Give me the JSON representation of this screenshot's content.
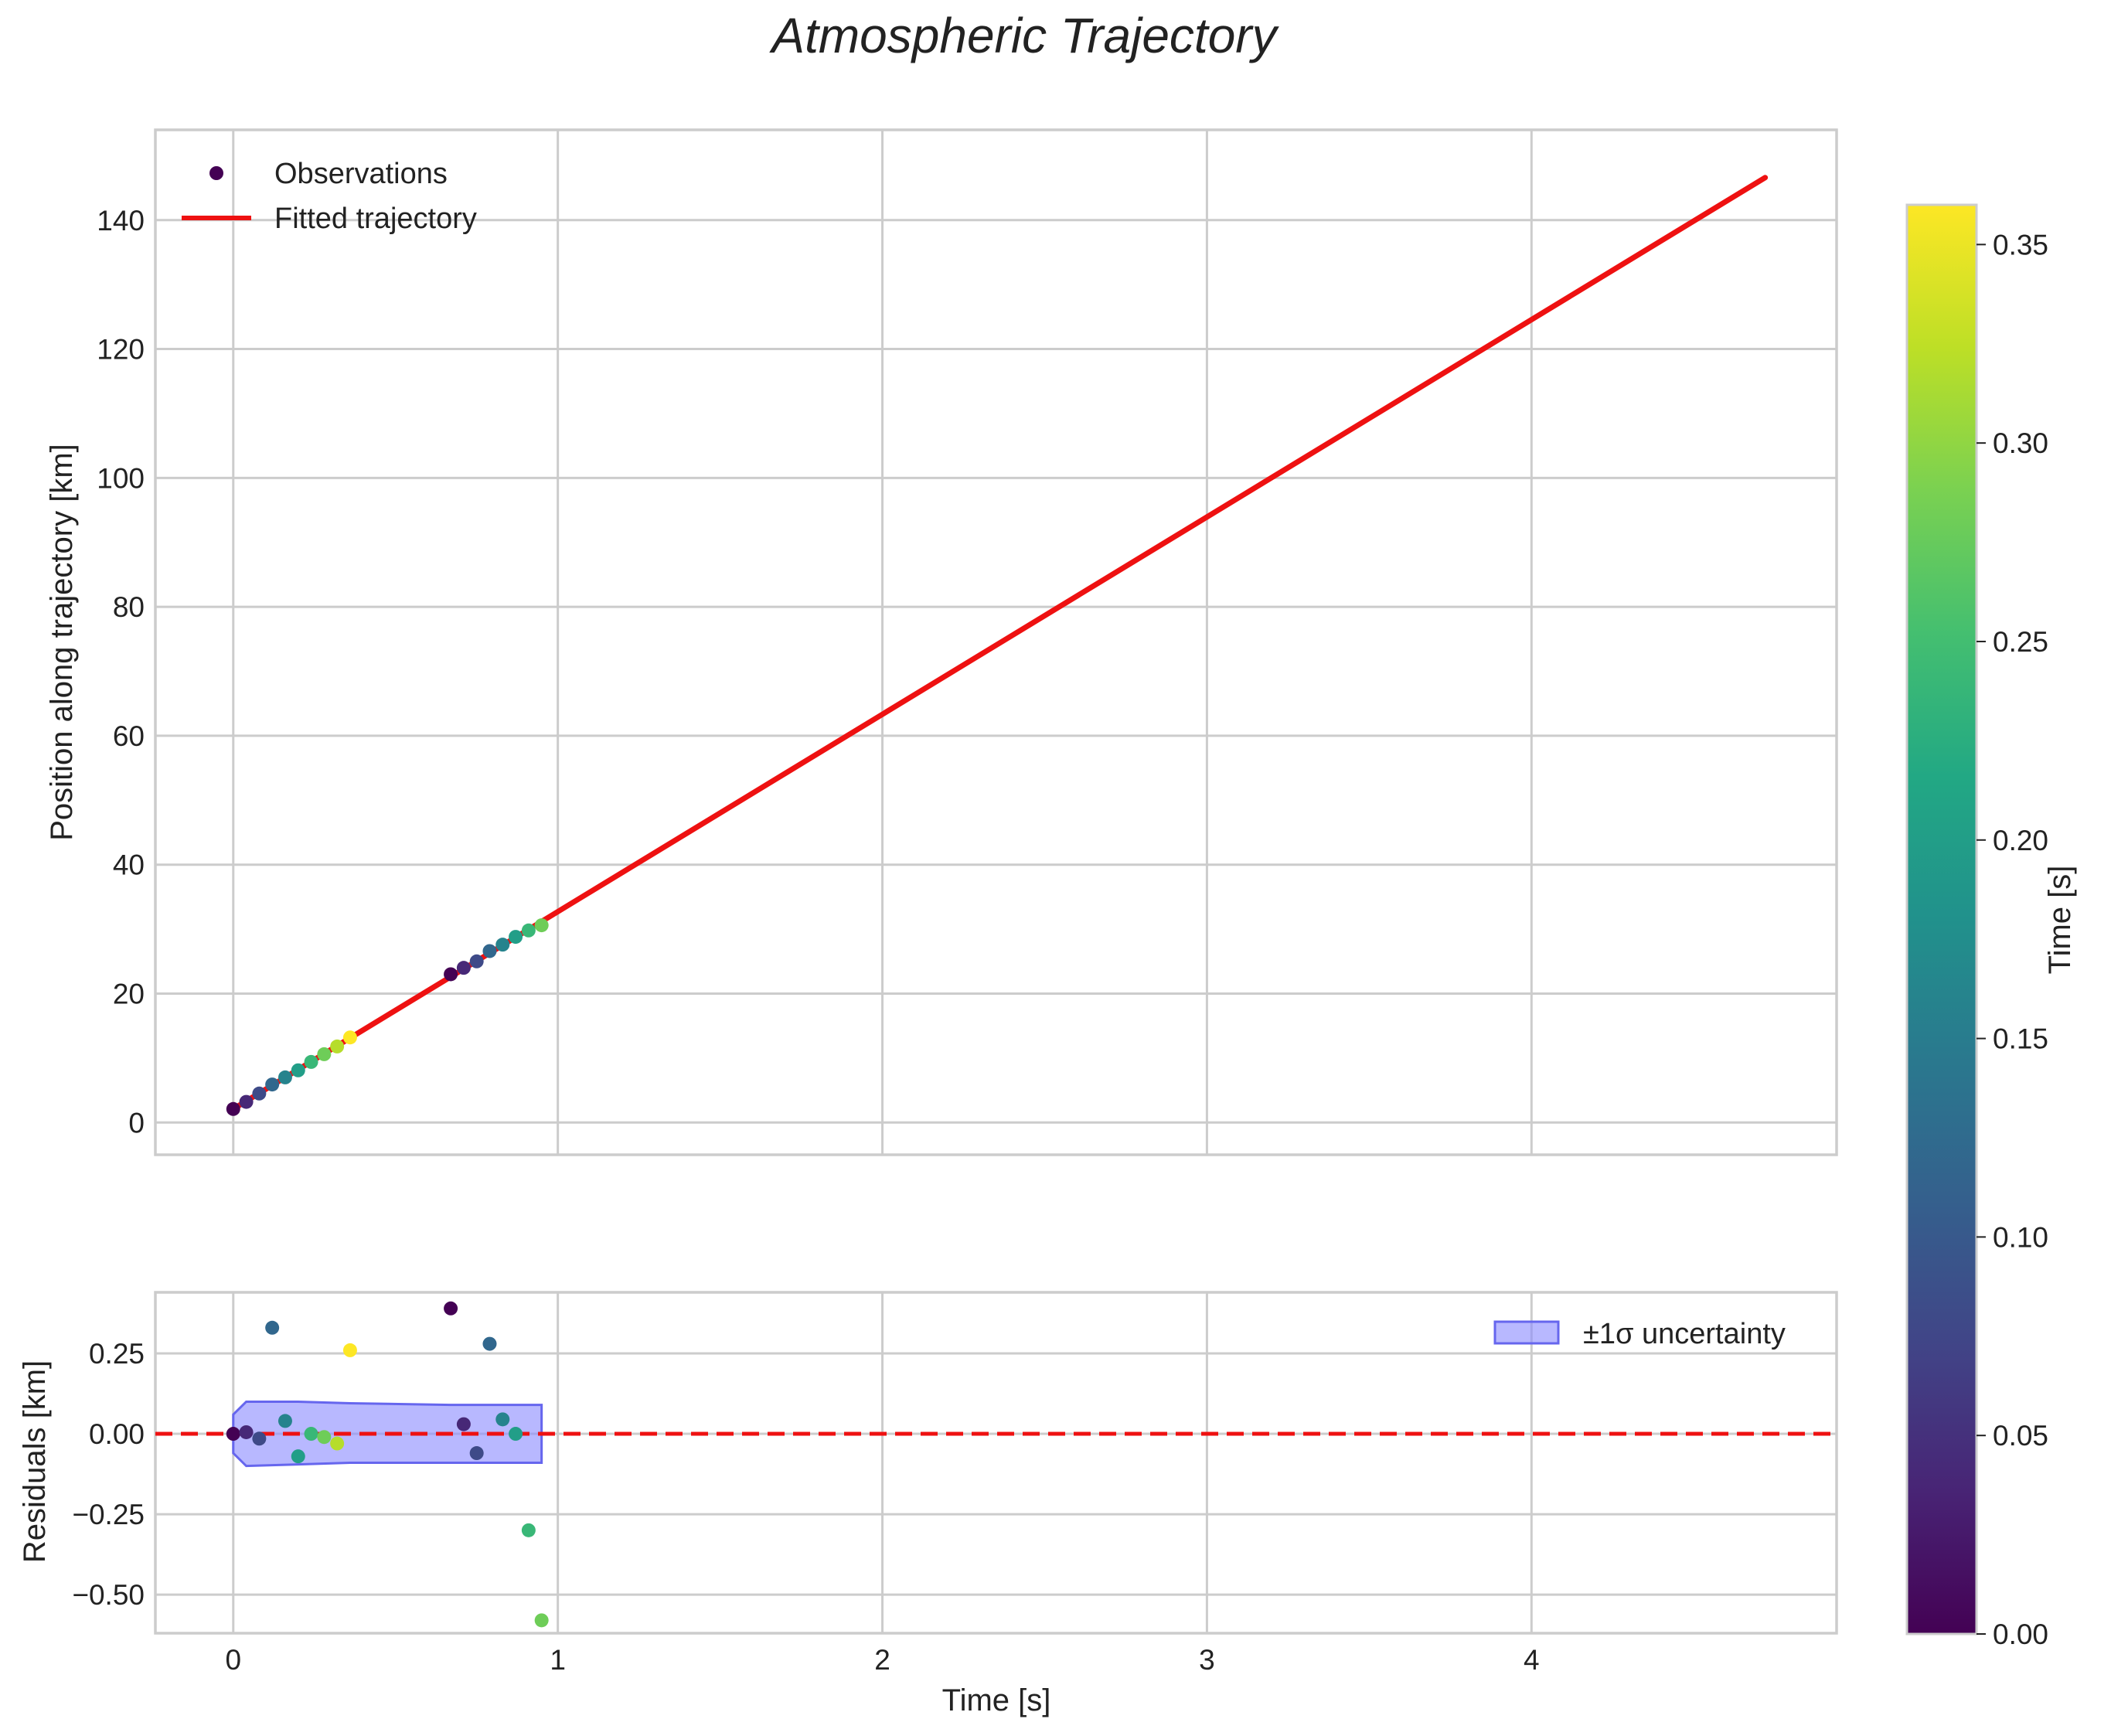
{
  "chart_data": [
    {
      "type": "line",
      "panel": "main",
      "title": "Atmospheric Trajectory",
      "xlabel": "",
      "ylabel": "Position along trajectory [km]",
      "xlim": [
        -0.24,
        4.94
      ],
      "ylim": [
        -5,
        154
      ],
      "x_ticks": [
        0,
        1,
        2,
        3,
        4
      ],
      "y_ticks": [
        0,
        20,
        40,
        60,
        80,
        100,
        120,
        140
      ],
      "grid": true,
      "legend": {
        "placement": "top-left",
        "entries": [
          "Observations",
          "Fitted trajectory"
        ]
      },
      "series": [
        {
          "name": "Observations",
          "kind": "scatter",
          "points": [
            {
              "x": 0.0,
              "y": 2.1,
              "t": 0.0
            },
            {
              "x": 0.04,
              "y": 3.2,
              "t": 0.04
            },
            {
              "x": 0.08,
              "y": 4.5,
              "t": 0.08
            },
            {
              "x": 0.12,
              "y": 5.9,
              "t": 0.12
            },
            {
              "x": 0.16,
              "y": 7.0,
              "t": 0.16
            },
            {
              "x": 0.2,
              "y": 8.1,
              "t": 0.2
            },
            {
              "x": 0.24,
              "y": 9.4,
              "t": 0.24
            },
            {
              "x": 0.28,
              "y": 10.6,
              "t": 0.28
            },
            {
              "x": 0.32,
              "y": 11.8,
              "t": 0.32
            },
            {
              "x": 0.36,
              "y": 13.2,
              "t": 0.36
            },
            {
              "x": 0.67,
              "y": 23.0,
              "t": 0.0
            },
            {
              "x": 0.71,
              "y": 24.0,
              "t": 0.04
            },
            {
              "x": 0.75,
              "y": 25.0,
              "t": 0.08
            },
            {
              "x": 0.79,
              "y": 26.6,
              "t": 0.12
            },
            {
              "x": 0.83,
              "y": 27.6,
              "t": 0.16
            },
            {
              "x": 0.87,
              "y": 28.8,
              "t": 0.2
            },
            {
              "x": 0.91,
              "y": 29.8,
              "t": 0.24
            },
            {
              "x": 0.95,
              "y": 30.6,
              "t": 0.28
            }
          ]
        },
        {
          "name": "Fitted trajectory",
          "kind": "line",
          "color": "#ee1111",
          "points": [
            {
              "x": 0.0,
              "y": 2.1
            },
            {
              "x": 4.72,
              "y": 146.6
            }
          ]
        }
      ]
    },
    {
      "type": "scatter",
      "panel": "residuals",
      "xlabel": "Time [s]",
      "ylabel": "Residuals [km]",
      "xlim": [
        -0.24,
        4.94
      ],
      "ylim": [
        -0.62,
        0.44
      ],
      "x_ticks": [
        0,
        1,
        2,
        3,
        4
      ],
      "x_tick_labels": [
        "0",
        "1",
        "2",
        "3",
        "4"
      ],
      "y_ticks": [
        0.25,
        0.0,
        -0.25,
        -0.5
      ],
      "y_tick_labels": [
        "0.25",
        "0.00",
        "−0.25",
        "−0.50"
      ],
      "grid": true,
      "zero_line": {
        "y": 0,
        "style": "dashed",
        "color": "#ee1111"
      },
      "legend": {
        "placement": "top-right",
        "entries": [
          "±1σ uncertainty"
        ]
      },
      "band": {
        "name": "±1σ uncertainty",
        "color": "#8888ff",
        "x": [
          0.0,
          0.04,
          0.2,
          0.36,
          0.67,
          0.95
        ],
        "upper": [
          0.06,
          0.1,
          0.1,
          0.095,
          0.09,
          0.09
        ],
        "lower": [
          -0.06,
          -0.1,
          -0.095,
          -0.09,
          -0.09,
          -0.09
        ]
      },
      "points": [
        {
          "x": 0.0,
          "y": 0.0,
          "t": 0.0
        },
        {
          "x": 0.04,
          "y": 0.005,
          "t": 0.04
        },
        {
          "x": 0.08,
          "y": -0.015,
          "t": 0.08
        },
        {
          "x": 0.12,
          "y": 0.33,
          "t": 0.12
        },
        {
          "x": 0.16,
          "y": 0.04,
          "t": 0.16
        },
        {
          "x": 0.2,
          "y": -0.07,
          "t": 0.2
        },
        {
          "x": 0.24,
          "y": 0.0,
          "t": 0.24
        },
        {
          "x": 0.28,
          "y": -0.01,
          "t": 0.28
        },
        {
          "x": 0.32,
          "y": -0.03,
          "t": 0.32
        },
        {
          "x": 0.36,
          "y": 0.26,
          "t": 0.36
        },
        {
          "x": 0.67,
          "y": 0.39,
          "t": 0.0
        },
        {
          "x": 0.71,
          "y": 0.03,
          "t": 0.04
        },
        {
          "x": 0.75,
          "y": -0.06,
          "t": 0.08
        },
        {
          "x": 0.79,
          "y": 0.28,
          "t": 0.12
        },
        {
          "x": 0.83,
          "y": 0.045,
          "t": 0.16
        },
        {
          "x": 0.87,
          "y": 0.0,
          "t": 0.2
        },
        {
          "x": 0.91,
          "y": -0.3,
          "t": 0.24
        },
        {
          "x": 0.95,
          "y": -0.58,
          "t": 0.28
        }
      ]
    },
    {
      "type": "colorbar",
      "label": "Time [s]",
      "colormap": "viridis",
      "range": [
        0.0,
        0.36
      ],
      "ticks": [
        0.0,
        0.05,
        0.1,
        0.15,
        0.2,
        0.25,
        0.3,
        0.35
      ],
      "tick_labels": [
        "0.00",
        "0.05",
        "0.10",
        "0.15",
        "0.20",
        "0.25",
        "0.30",
        "0.35"
      ]
    }
  ]
}
